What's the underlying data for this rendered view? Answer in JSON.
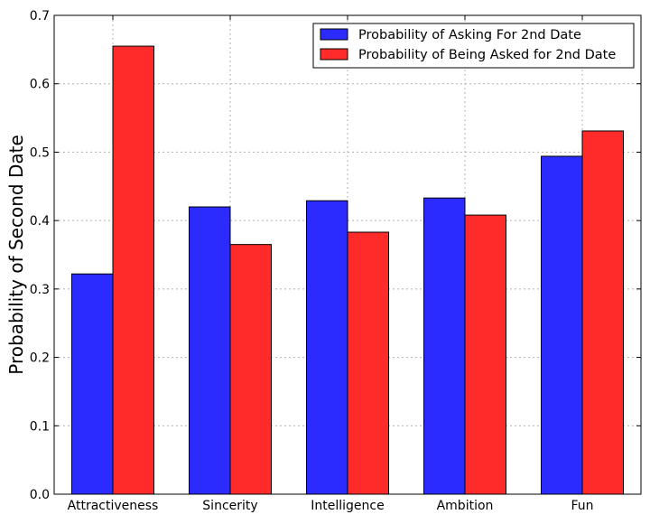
{
  "chart_data": {
    "type": "bar",
    "title": "",
    "xlabel": "",
    "ylabel": "Probability of Second Date",
    "categories": [
      "Attractiveness",
      "Sincerity",
      "Intelligence",
      "Ambition",
      "Fun"
    ],
    "series": [
      {
        "name": "Probability of Asking For 2nd Date",
        "color": "#2b2bff",
        "values": [
          0.322,
          0.42,
          0.429,
          0.433,
          0.494
        ]
      },
      {
        "name": "Probability of Being Asked for 2nd Date",
        "color": "#ff2b2b",
        "values": [
          0.655,
          0.365,
          0.383,
          0.408,
          0.531
        ]
      }
    ],
    "ylim": [
      0,
      0.7
    ],
    "yticks": [
      "0.0",
      "0.1",
      "0.2",
      "0.3",
      "0.4",
      "0.5",
      "0.6",
      "0.7"
    ],
    "grid": true,
    "legend_position": "top-right"
  }
}
